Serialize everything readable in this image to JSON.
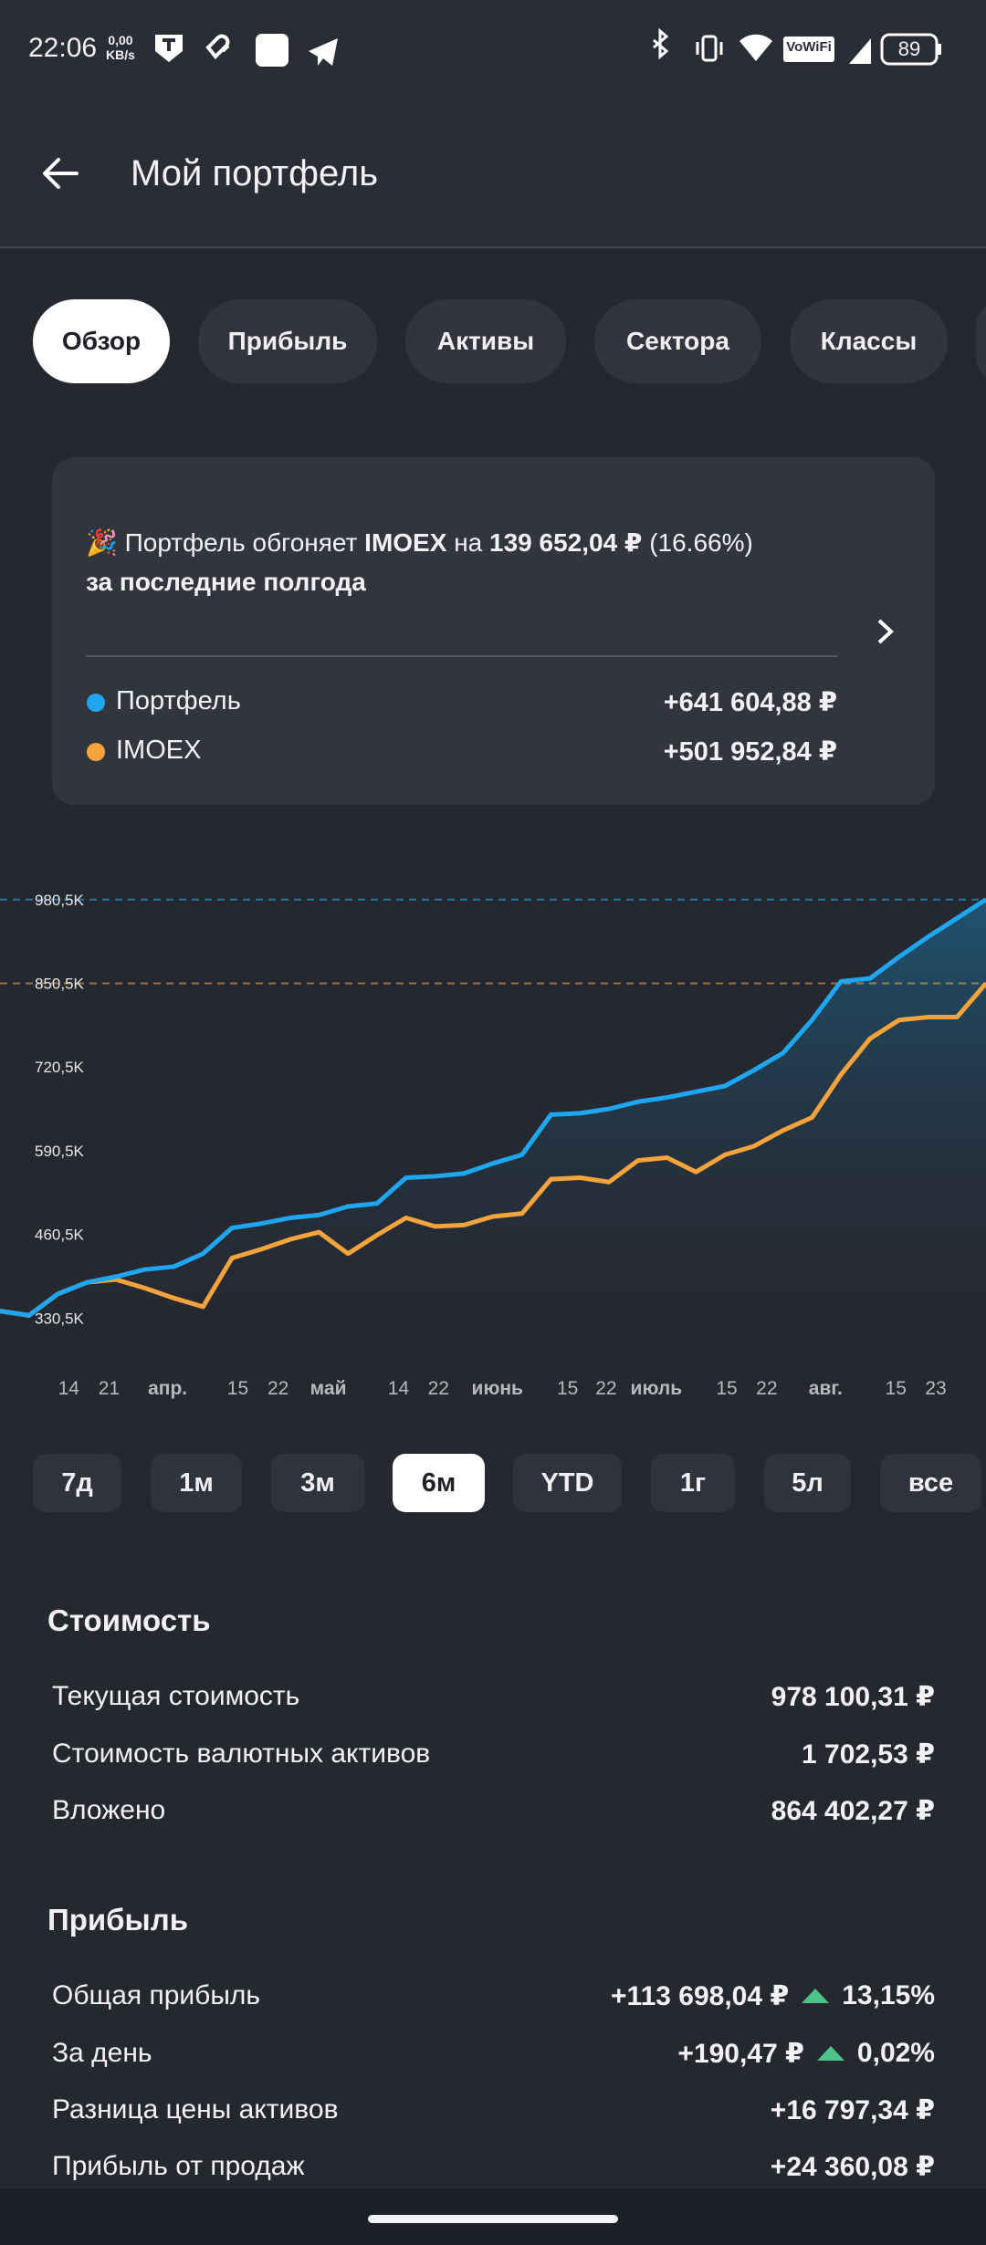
{
  "status_bar": {
    "time": "22:06",
    "net_speed": "0,00",
    "net_unit": "KB/s",
    "wifi_label": "VoWiFi",
    "battery": "89"
  },
  "header": {
    "title": "Мой портфель"
  },
  "tabs": {
    "items": [
      "Обзор",
      "Прибыль",
      "Активы",
      "Сектора",
      "Классы"
    ],
    "selected": 0
  },
  "summary": {
    "emoji": "🎉",
    "lead": "Портфель обгоняет",
    "index": "IMOEX",
    "middle": "на",
    "amount": "139 652,04 ₽",
    "percent": "(16.66%)",
    "period": "за последние полгода",
    "legend_values": [
      "+641 604,88 ₽",
      "+501 952,84 ₽"
    ]
  },
  "chart_data": {
    "type": "line",
    "xlim": [
      0,
      34
    ],
    "xticks": [
      {
        "value": 2.37,
        "label": "14"
      },
      {
        "value": 3.76,
        "label": "21"
      },
      {
        "value": 5.78,
        "label": "апр."
      },
      {
        "value": 8.2,
        "label": "15"
      },
      {
        "value": 9.59,
        "label": "22"
      },
      {
        "value": 11.32,
        "label": "май"
      },
      {
        "value": 13.74,
        "label": "14"
      },
      {
        "value": 15.12,
        "label": "22"
      },
      {
        "value": 17.15,
        "label": "июнь"
      },
      {
        "value": 19.57,
        "label": "15"
      },
      {
        "value": 20.9,
        "label": "22"
      },
      {
        "value": 22.63,
        "label": "июль"
      },
      {
        "value": 25.06,
        "label": "15"
      },
      {
        "value": 26.44,
        "label": "22"
      },
      {
        "value": 28.47,
        "label": "авг."
      },
      {
        "value": 30.89,
        "label": "15"
      },
      {
        "value": 32.27,
        "label": "23"
      }
    ],
    "ylim": [
      300,
      1000
    ],
    "yticks": [
      {
        "value": 330.5,
        "label": "330,5K"
      },
      {
        "value": 460.5,
        "label": "460,5K"
      },
      {
        "value": 590.5,
        "label": "590,5K"
      },
      {
        "value": 720.5,
        "label": "720,5K"
      },
      {
        "value": 850.5,
        "label": "850,5K"
      },
      {
        "value": 980.5,
        "label": "980,5K"
      }
    ],
    "series": [
      {
        "name": "Портфель",
        "color": "#1ea7f0",
        "values": [
          341.6,
          334.9,
          368.3,
          386.2,
          395.1,
          406.2,
          410.6,
          430.7,
          470.7,
          477.4,
          486.3,
          490.8,
          504.1,
          508.6,
          548.7,
          550.9,
          555.3,
          570.9,
          584.3,
          646.6,
          648.8,
          655.5,
          666.6,
          673.3,
          682.2,
          691.1,
          715.6,
          742.3,
          793.5,
          853.6,
          858.1,
          891.5,
          922.6,
          951.6,
          980.5
        ]
      },
      {
        "name": "IMOEX",
        "color": "#f5a33c",
        "values": [
          341.6,
          334.9,
          368.3,
          386.2,
          390.6,
          377.2,
          361.7,
          348.3,
          424.0,
          437.4,
          452.9,
          464.1,
          430.7,
          459.6,
          486.3,
          473.0,
          475.2,
          488.5,
          493.0,
          546.4,
          548.7,
          542.0,
          575.4,
          579.8,
          557.6,
          584.3,
          597.6,
          622.1,
          642.1,
          708.9,
          764.6,
          793.5,
          798.0,
          798.0,
          850.5
        ]
      }
    ]
  },
  "periods": {
    "items": [
      "7д",
      "1м",
      "3м",
      "6м",
      "YTD",
      "1г",
      "5л",
      "все"
    ],
    "selected": 3
  },
  "value_section": {
    "title": "Стоимость",
    "rows": [
      [
        "Текущая стоимость",
        "978 100,31 ₽"
      ],
      [
        "Стоимость валютных активов",
        "1 702,53 ₽"
      ],
      [
        "Вложено",
        "864 402,27 ₽"
      ]
    ]
  },
  "profit_section": {
    "title": "Прибыль",
    "rows": [
      {
        "label": "Общая прибыль",
        "value": "+113 698,04 ₽",
        "change": "13,15%"
      },
      {
        "label": "За день",
        "value": "+190,47 ₽",
        "change": "0,02%"
      },
      {
        "label": "Разница цены активов",
        "value": "+16 797,34 ₽"
      },
      {
        "label": "Прибыль от продаж",
        "value": "+24 360,08 ₽"
      }
    ]
  }
}
